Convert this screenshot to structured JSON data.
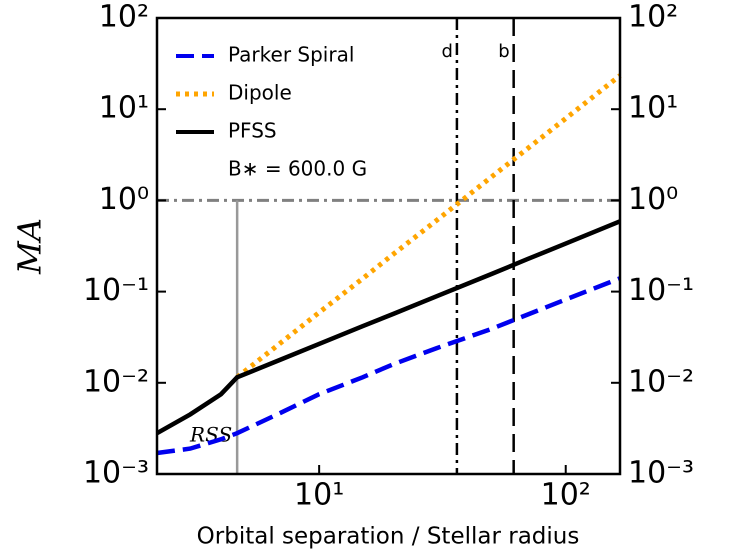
{
  "chart_data": {
    "type": "line",
    "xlabel": "Orbital separation / Stellar radius",
    "ylabel": "MA",
    "log_x": true,
    "log_y": true,
    "legend": "upper left",
    "x": [
      2.2,
      3,
      4,
      4.65,
      7,
      10,
      15,
      20,
      30,
      50,
      70,
      100,
      166
    ],
    "series": [
      {
        "name": "Parker Spiral",
        "color": "#0000ee",
        "style": "dashed",
        "values": [
          0.0017,
          0.0019,
          0.0024,
          0.0028,
          0.0047,
          0.0075,
          0.0115,
          0.016,
          0.024,
          0.039,
          0.056,
          0.082,
          0.14
        ]
      },
      {
        "name": "Dipole",
        "color": "#ffa500",
        "style": "dotted",
        "values": [
          null,
          null,
          null,
          0.0115,
          0.0275,
          0.059,
          0.139,
          0.258,
          0.607,
          1.81,
          3.7,
          7.9,
          23.4
        ]
      },
      {
        "name": "PFSS",
        "color": "#000000",
        "style": "solid",
        "values": [
          0.0028,
          0.0045,
          0.0075,
          0.0115,
          0.018,
          0.0267,
          0.0417,
          0.057,
          0.089,
          0.156,
          0.227,
          0.336,
          0.59
        ]
      }
    ],
    "legend_note": "B∗ = 600.0 G",
    "vlines": [
      {
        "x": 36.2,
        "label": "d",
        "style": "dashdot"
      },
      {
        "x": 61.5,
        "label": "b",
        "style": "dashed"
      }
    ],
    "rss": {
      "x": 4.65,
      "label": "RSS"
    },
    "hline": {
      "y": 1
    },
    "xlim": [
      2.2,
      166
    ],
    "ylim": [
      0.001,
      100
    ],
    "xticks": [
      {
        "value": 10,
        "label": "10¹"
      },
      {
        "value": 100,
        "label": "10²"
      }
    ],
    "yticks": [
      {
        "value": 0.001,
        "label": "10⁻³"
      },
      {
        "value": 0.01,
        "label": "10⁻²"
      },
      {
        "value": 0.1,
        "label": "10⁻¹"
      },
      {
        "value": 1,
        "label": "10⁰"
      },
      {
        "value": 10,
        "label": "10¹"
      },
      {
        "value": 100,
        "label": "10²"
      }
    ]
  }
}
